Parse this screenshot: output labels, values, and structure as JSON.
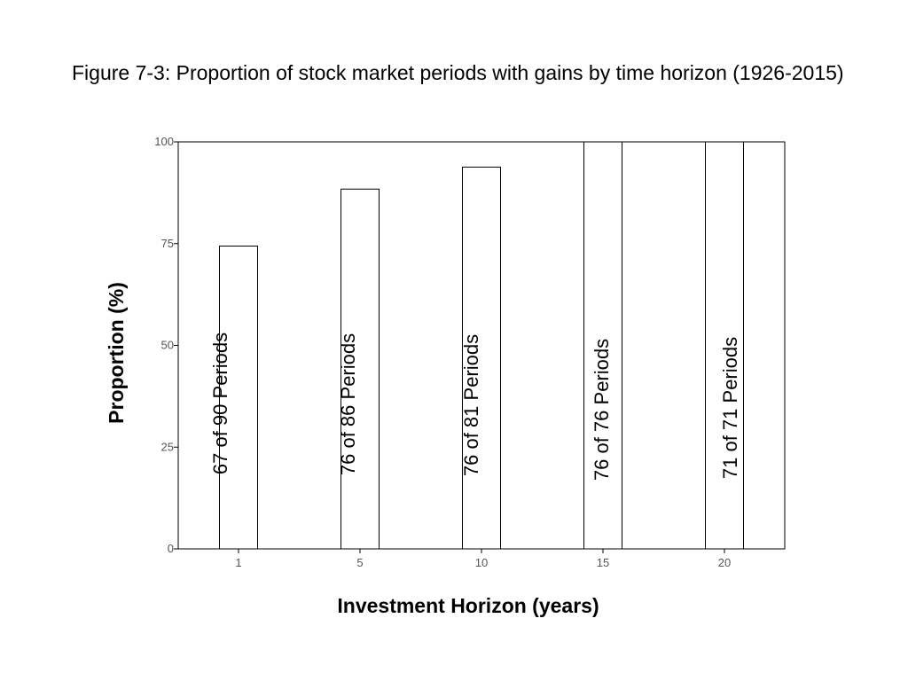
{
  "chart_data": {
    "type": "bar",
    "title": "Figure 7-3: Proportion of stock market periods with gains by time horizon (1926-2015)",
    "xlabel": "Investment Horizon (years)",
    "ylabel": "Proportion (%)",
    "categories": [
      "1",
      "5",
      "10",
      "15",
      "20"
    ],
    "values": [
      74.4,
      88.4,
      93.8,
      100,
      100
    ],
    "bar_labels": [
      "67 of 90 Periods",
      "76 of 86 Periods",
      "76 of 81 Periods",
      "76 of 76 Periods",
      "71 of 71 Periods"
    ],
    "yticks": [
      0,
      25,
      50,
      75,
      100
    ],
    "ylim": [
      0,
      100
    ],
    "grid": false,
    "bar_fill": "#ffffff",
    "bar_stroke": "#000000",
    "tick_label_color": "#555555"
  }
}
